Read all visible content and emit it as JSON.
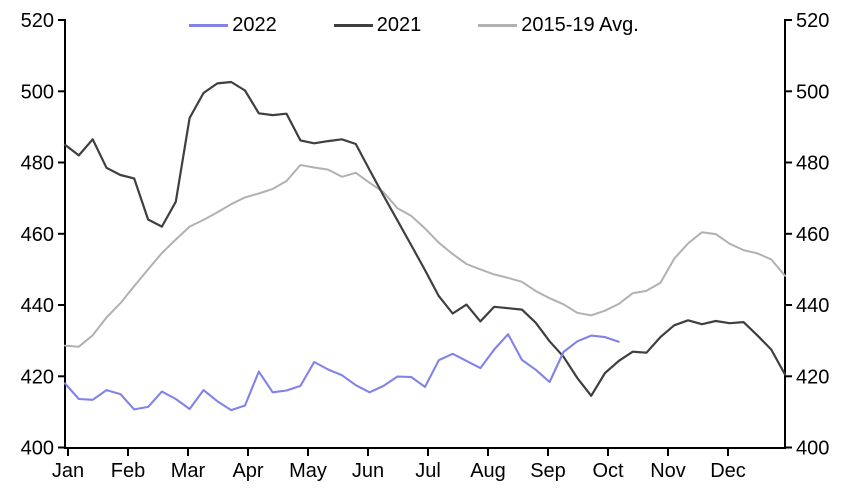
{
  "chart_data": {
    "type": "line",
    "title": "",
    "grid": false,
    "legend_position": "top",
    "x_axis": {
      "unit": "weeks",
      "labels": [
        "Jan",
        "Feb",
        "Mar",
        "Apr",
        "May",
        "Jun",
        "Jul",
        "Aug",
        "Sep",
        "Oct",
        "Nov",
        "Dec"
      ]
    },
    "y_axis": {
      "min": 400,
      "max": 520,
      "tick_step": 20,
      "ticks": [
        400,
        420,
        440,
        460,
        480,
        500,
        520
      ],
      "dual": true
    },
    "series": [
      {
        "name": "2022",
        "color": "#8282e8",
        "stroke_width": 2.1,
        "weekly_values": [
          418,
          413.6,
          413.4,
          416.1,
          415,
          410.7,
          411.4,
          415.7,
          413.6,
          410.8,
          416.1,
          413,
          410.5,
          411.8,
          421.3,
          415.5,
          416,
          417.3,
          424,
          421.9,
          420.3,
          417.5,
          415.5,
          417.3,
          419.9,
          419.8,
          417,
          424.5,
          426.3,
          424.3,
          422.3,
          427.5,
          431.8,
          424.6,
          421.8,
          418.4,
          426.8,
          429.8,
          431.4,
          431,
          429.7
        ]
      },
      {
        "name": "2021",
        "color": "#3f3f3f",
        "stroke_width": 2.2,
        "weekly_values": [
          485,
          482,
          486.5,
          478.5,
          476.5,
          475.5,
          464,
          462,
          469,
          492.5,
          499.5,
          502.2,
          502.6,
          500.2,
          493.8,
          493.3,
          493.7,
          486.2,
          485.4,
          486,
          486.5,
          485.2,
          477.9,
          470.7,
          463.8,
          456.8,
          449.8,
          442.5,
          437.6,
          440.1,
          435.4,
          439.5,
          439.1,
          438.7,
          435,
          429.8,
          425.5,
          419.5,
          414.5,
          420.9,
          424.3,
          426.9,
          426.6,
          431,
          434.3,
          435.7,
          434.6,
          435.5,
          434.9,
          435.2,
          431.5,
          427.5,
          420.5
        ]
      },
      {
        "name": "2015-19 Avg.",
        "color": "#b1b1b1",
        "stroke_width": 2,
        "weekly_values": [
          428.6,
          428.3,
          431.5,
          436.5,
          440.5,
          445.3,
          450,
          454.6,
          458.4,
          462,
          463.9,
          466,
          468.3,
          470.2,
          471.3,
          472.6,
          474.8,
          479.3,
          478.6,
          478,
          476,
          477.1,
          474.3,
          471.7,
          467.2,
          465,
          461.5,
          457.5,
          454.3,
          451.5,
          450,
          448.6,
          447.6,
          446.5,
          443.9,
          441.9,
          440.2,
          437.8,
          437.1,
          438.4,
          440.3,
          443.3,
          444,
          446.2,
          453,
          457.3,
          460.4,
          459.9,
          457.2,
          455.4,
          454.5,
          452.8,
          448.2
        ]
      }
    ]
  }
}
